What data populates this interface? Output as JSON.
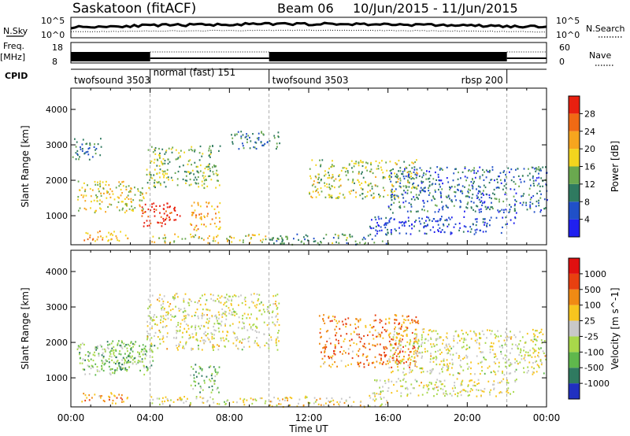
{
  "header": {
    "title": "Saskatoon (fitACF)",
    "beam": "Beam 06",
    "dates": "10/Jun/2015 - 11/Jun/2015"
  },
  "top_panel": {
    "left_label_sky": "N.Sky",
    "sky_tick_hi": "10^5",
    "sky_tick_lo": "10^0",
    "right_label_search": "N.Search",
    "freq_label": "Freq.",
    "freq_unit": "[MHz]",
    "freq_tick_hi": "18",
    "freq_tick_lo": "8",
    "nave_tick_hi": "60",
    "nave_tick_lo": "0",
    "right_label_nave": "Nave",
    "cpid_label": "CPID",
    "cpid_segments": [
      {
        "label": "twofsound 3503",
        "start_h": 0,
        "end_h": 4
      },
      {
        "label": "normal (fast) 151",
        "start_h": 4,
        "end_h": 10
      },
      {
        "label": "twofsound 3503",
        "start_h": 10,
        "end_h": 22
      },
      {
        "label": "rbsp 200",
        "start_h": 22,
        "end_h": 24
      }
    ]
  },
  "chart_data": [
    {
      "type": "heatmap",
      "title": "",
      "xlabel": "",
      "ylabel": "Slant Range [km]",
      "xlim": [
        0,
        24
      ],
      "ylim": [
        180,
        4600
      ],
      "yticks": [
        1000,
        2000,
        3000,
        4000
      ],
      "colorbar": {
        "label": "Power [dB]",
        "ticks": [
          "4",
          "8",
          "12",
          "16",
          "20",
          "24",
          "28"
        ],
        "colors": [
          "#2020f0",
          "#2050c8",
          "#2f7a60",
          "#6aa84f",
          "#f2d51e",
          "#f7a51e",
          "#f06a14",
          "#e82010"
        ]
      },
      "regions": [
        {
          "t0": 0.3,
          "t1": 3.8,
          "r0": 1100,
          "r1": 2000,
          "level": 0.55
        },
        {
          "t0": 3.5,
          "t1": 5.5,
          "r0": 700,
          "r1": 1400,
          "level": 0.95
        },
        {
          "t0": 0.5,
          "t1": 3.0,
          "r0": 300,
          "r1": 600,
          "level": 0.7
        },
        {
          "t0": 3.8,
          "t1": 7.5,
          "r0": 1800,
          "r1": 3000,
          "level": 0.45
        },
        {
          "t0": 4.0,
          "t1": 9.8,
          "r0": 250,
          "r1": 500,
          "level": 0.55
        },
        {
          "t0": 6.0,
          "t1": 7.5,
          "r0": 600,
          "r1": 1400,
          "level": 0.7
        },
        {
          "t0": 8.0,
          "t1": 10.5,
          "r0": 2900,
          "r1": 3400,
          "level": 0.3
        },
        {
          "t0": 10.0,
          "t1": 16.0,
          "r0": 200,
          "r1": 500,
          "level": 0.35
        },
        {
          "t0": 12.0,
          "t1": 17.5,
          "r0": 1500,
          "r1": 2600,
          "level": 0.5
        },
        {
          "t0": 16.0,
          "t1": 24.0,
          "r0": 1100,
          "r1": 2400,
          "level": 0.25
        },
        {
          "t0": 15.0,
          "t1": 22.5,
          "r0": 500,
          "r1": 1000,
          "level": 0.15
        },
        {
          "t0": 0.0,
          "t1": 1.5,
          "r0": 2600,
          "r1": 3200,
          "level": 0.3
        }
      ]
    },
    {
      "type": "heatmap",
      "title": "",
      "xlabel": "Time UT",
      "ylabel": "Slant Range [km]",
      "xlim": [
        0,
        24
      ],
      "ylim": [
        180,
        4600
      ],
      "yticks": [
        1000,
        2000,
        3000,
        4000
      ],
      "xticks": [
        "00:00",
        "04:00",
        "08:00",
        "12:00",
        "16:00",
        "20:00",
        "00:00"
      ],
      "colorbar": {
        "label": "Velocity [m s^-1]",
        "ticks": [
          "1000",
          "500",
          "100",
          "25",
          "-25",
          "-100",
          "-500",
          "-1000"
        ],
        "colors": [
          "#2030c0",
          "#2f7a60",
          "#5fb84c",
          "#a8d84a",
          "#c8c8c8",
          "#f7c51e",
          "#f08a14",
          "#e84010",
          "#e01010"
        ]
      },
      "regions": [
        {
          "t0": 0.3,
          "t1": 3.8,
          "r0": 1100,
          "r1": 2000,
          "level": 0.35
        },
        {
          "t0": 1.5,
          "t1": 4.2,
          "r0": 1200,
          "r1": 2100,
          "level": 0.28
        },
        {
          "t0": 0.5,
          "t1": 3.0,
          "r0": 300,
          "r1": 600,
          "level": 0.7
        },
        {
          "t0": 3.8,
          "t1": 10.5,
          "r0": 1800,
          "r1": 3400,
          "level": 0.5
        },
        {
          "t0": 4.0,
          "t1": 9.8,
          "r0": 250,
          "r1": 500,
          "level": 0.5
        },
        {
          "t0": 6.0,
          "t1": 7.5,
          "r0": 600,
          "r1": 1400,
          "level": 0.3
        },
        {
          "t0": 10.0,
          "t1": 16.0,
          "r0": 200,
          "r1": 500,
          "level": 0.55
        },
        {
          "t0": 12.5,
          "t1": 17.5,
          "r0": 1300,
          "r1": 2800,
          "level": 0.72
        },
        {
          "t0": 16.0,
          "t1": 24.0,
          "r0": 1100,
          "r1": 2400,
          "level": 0.5
        },
        {
          "t0": 15.0,
          "t1": 22.5,
          "r0": 500,
          "r1": 1000,
          "level": 0.5
        }
      ]
    }
  ]
}
